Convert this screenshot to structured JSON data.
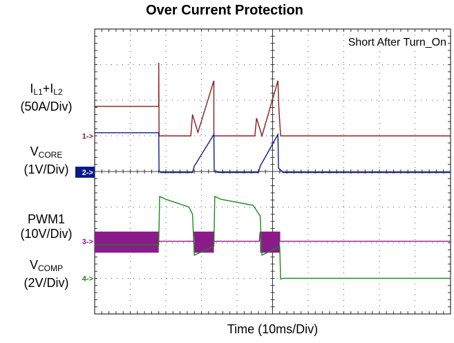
{
  "chart_data": {
    "type": "line",
    "title": "Over Current Protection",
    "annotation": "Short After Turn_On",
    "xlabel": "Time (10ms/Div)",
    "x_divisions": 10,
    "y_divisions": 8,
    "grid": true,
    "channel_labels": [
      {
        "id": "i",
        "main": "I",
        "sub1": "L1",
        "mid": "+I",
        "sub2": "L2",
        "scale": "(50A/Div)"
      },
      {
        "id": "vcore",
        "main": "V",
        "sub1": "CORE",
        "mid": "",
        "sub2": "",
        "scale": "(1V/Div)"
      },
      {
        "id": "pwm",
        "main": "PWM1",
        "sub1": "",
        "mid": "",
        "sub2": "",
        "scale": "(10V/Div)"
      },
      {
        "id": "vcomp",
        "main": "V",
        "sub1": "COMP",
        "mid": "",
        "sub2": "",
        "scale": "(2V/Div)"
      }
    ],
    "markers": [
      {
        "label": "1->",
        "color": "#8b1a1a",
        "level": 5.0,
        "filled": false
      },
      {
        "label": "2->",
        "color": "#0a1a8c",
        "level": 3.98,
        "filled": true
      },
      {
        "label": "3->",
        "color": "#8b1a8b",
        "level": 2.04,
        "filled": false
      },
      {
        "label": "4->",
        "color": "#1a8a1a",
        "level": 1.0,
        "filled": false
      }
    ],
    "series": [
      {
        "name": "IL1+IL2",
        "color": "#8b1a1a",
        "x": [
          0,
          3.6,
          3.6,
          3.62,
          3.7,
          5.4,
          5.5,
          5.8,
          6.7,
          6.7,
          9.0,
          9.1,
          9.4,
          10.3,
          10.35,
          10.45,
          20
        ],
        "y": [
          5.83,
          5.83,
          7.05,
          5.0,
          5.0,
          5.0,
          5.6,
          5.1,
          6.55,
          5.0,
          5.0,
          5.5,
          5.0,
          6.55,
          5.8,
          5.0,
          5.0
        ]
      },
      {
        "name": "VCORE",
        "color": "#0a1a8c",
        "x": [
          0,
          3.6,
          3.62,
          3.75,
          5.5,
          5.6,
          6.7,
          6.72,
          7.0,
          9.2,
          9.3,
          10.3,
          10.33,
          10.6,
          20
        ],
        "y": [
          5.09,
          5.09,
          4.0,
          3.97,
          3.97,
          4.15,
          5.04,
          4.0,
          3.97,
          3.97,
          4.15,
          5.04,
          4.1,
          3.97,
          3.97
        ]
      },
      {
        "name": "PWM1",
        "color": "#8b1a8b",
        "x": [
          0,
          3.6,
          3.6,
          5.55,
          5.6,
          6.7,
          6.7,
          9.25,
          9.3,
          10.4,
          10.4,
          20
        ],
        "y": [
          2.3,
          2.3,
          2.04,
          2.04,
          2.3,
          2.3,
          2.04,
          2.04,
          2.3,
          2.3,
          2.04,
          2.04
        ]
      },
      {
        "name": "VCOMP",
        "color": "#1a8a1a",
        "x": [
          0,
          3.6,
          3.65,
          4.0,
          5.3,
          5.5,
          5.6,
          6.7,
          6.75,
          7.1,
          8.9,
          9.3,
          9.4,
          10.4,
          10.45,
          10.6,
          20
        ],
        "y": [
          1.94,
          1.94,
          3.3,
          3.22,
          3.0,
          2.8,
          1.65,
          1.9,
          3.3,
          3.22,
          3.05,
          2.75,
          1.65,
          1.9,
          0.98,
          1.0,
          1.0
        ]
      }
    ]
  }
}
